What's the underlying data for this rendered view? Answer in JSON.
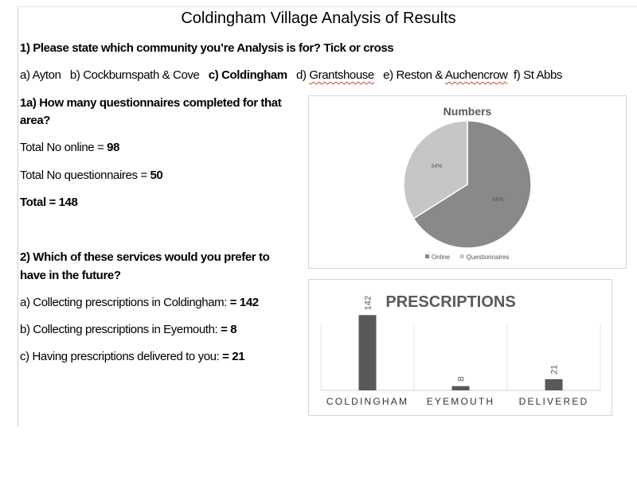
{
  "title": "Coldingham Village Analysis of Results",
  "q1": {
    "question": "1) Please state which community you’re Analysis is for? Tick or cross",
    "options": {
      "a": "a) Ayton",
      "b": "b) Cockburnspath & Cove",
      "c": "c) Coldingham",
      "d_prefix": "d) ",
      "d_word": "Grantshouse",
      "e_prefix": "e) Reston & ",
      "e_word": "Auchencrow",
      "f": "f) St Abbs"
    }
  },
  "q1a": {
    "question_line1": "1a) How many questionnaires completed for that",
    "question_line2": "area?",
    "online_label": "Total No online = ",
    "online_value": "98",
    "paper_label": "Total No questionnaires = ",
    "paper_value": "50",
    "total": "Total = 148"
  },
  "q2": {
    "question_line1": "2) Which of these services would you prefer to",
    "question_line2": "have in the future?",
    "a_label": "a) Collecting prescriptions in Coldingham: ",
    "a_value": "= 142",
    "b_label": "b) Collecting prescriptions in Eyemouth: ",
    "b_value": "= 8",
    "c_label": "c) Having prescriptions delivered to you: ",
    "c_value": "= 21"
  },
  "colors": {
    "pie_online": "#898989",
    "pie_questionnaires": "#c6c6c6",
    "bar": "#595959",
    "pie_title": "#595959"
  },
  "chart_data": [
    {
      "type": "pie",
      "title": "Numbers",
      "labels": [
        "Online",
        "Questionnaires"
      ],
      "values": [
        66,
        34
      ],
      "data_labels": [
        "66%",
        "34%"
      ],
      "legend": "bottom"
    },
    {
      "type": "bar",
      "title": "PRESCRIPTIONS",
      "categories": [
        "COLDINGHAM",
        "EYEMOUTH",
        "DELIVERED"
      ],
      "values": [
        142,
        8,
        21
      ],
      "data_labels": [
        "142",
        "8",
        "21"
      ],
      "ylim": [
        0,
        150
      ]
    }
  ]
}
